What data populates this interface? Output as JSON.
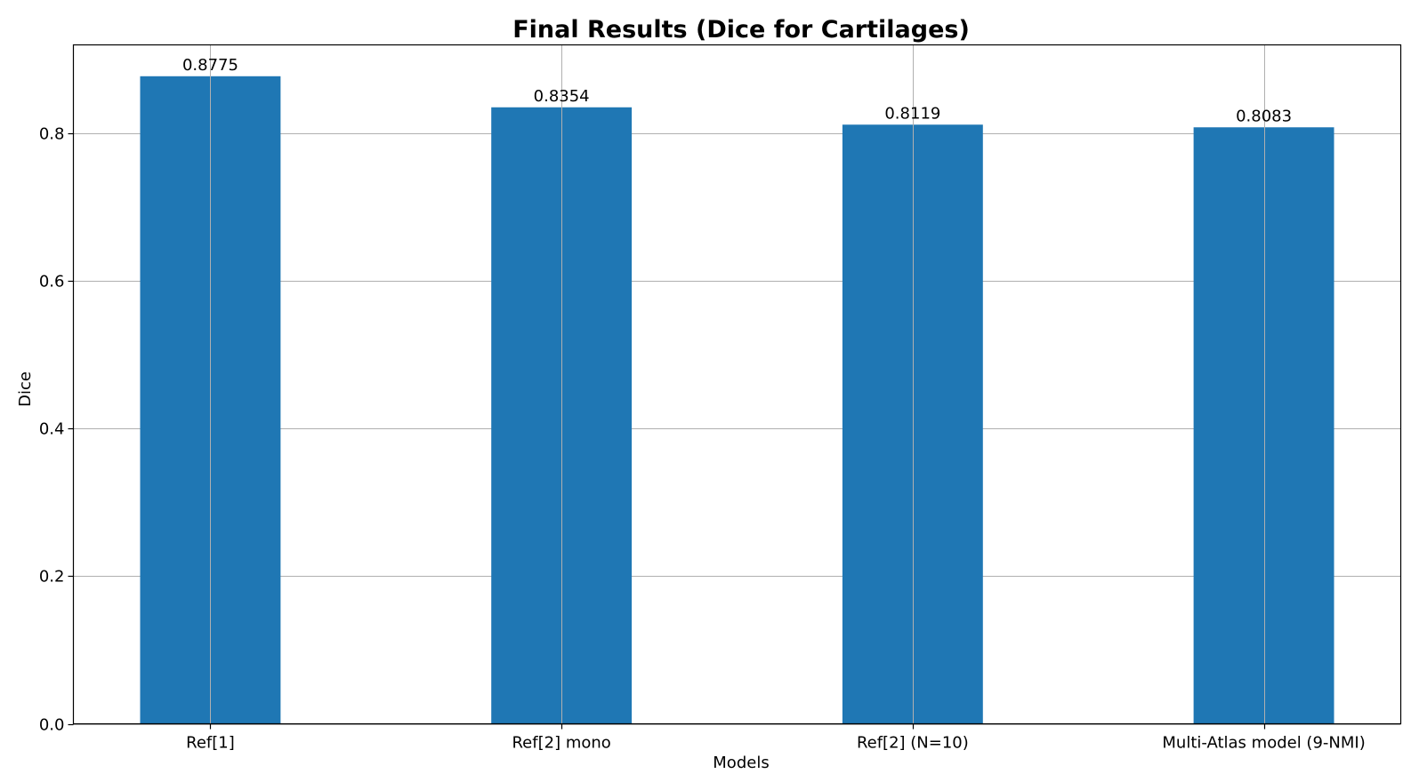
{
  "chart_data": {
    "type": "bar",
    "title": "Final Results (Dice for Cartilages)",
    "xlabel": "Models",
    "ylabel": "Dice",
    "categories": [
      "Ref[1]",
      "Ref[2] mono",
      "Ref[2] (N=10)",
      "Multi-Atlas model (9-NMI)"
    ],
    "values": [
      0.8775,
      0.8354,
      0.8119,
      0.8083
    ],
    "data_labels": [
      "0.8775",
      "0.8354",
      "0.8119",
      "0.8083"
    ],
    "ylim": [
      0,
      0.92
    ],
    "yticks": [
      0.0,
      0.2,
      0.4,
      0.6,
      0.8
    ],
    "ytick_labels": [
      "0.0",
      "0.2",
      "0.4",
      "0.6",
      "0.8"
    ],
    "grid": true,
    "bar_color": "#1f77b4"
  }
}
